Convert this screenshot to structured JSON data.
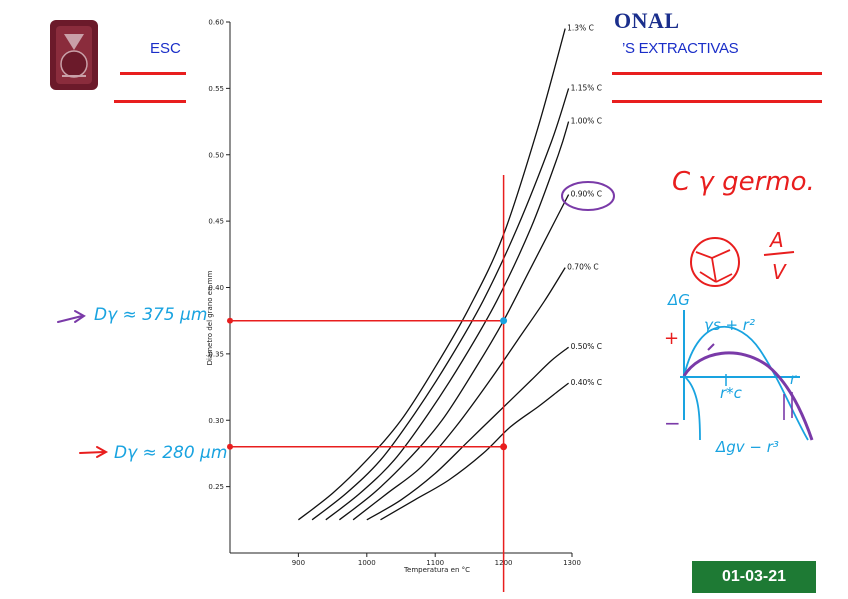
{
  "header": {
    "title_fragment": "ONAL",
    "subtitle_left_fragment": "ESC",
    "subtitle_right_fragment": "’S EXTRACTIVAS"
  },
  "date_badge": "01-03-21",
  "colors": {
    "ink_red": "#e81e1e",
    "ink_blue": "#19a3e0",
    "ink_purple": "#7a3aa8",
    "header_blue": "#1a2ec8",
    "badge_green": "#1e7a34",
    "logo_maroon": "#6b1a2a"
  },
  "chart_data": {
    "type": "line",
    "xlabel": "Temperatura en °C",
    "ylabel": "Diámetro del grano en mm",
    "xlim": [
      800,
      1300
    ],
    "ylim": [
      0.2,
      0.6
    ],
    "x_ticks": [
      900,
      1000,
      1100,
      1200,
      1300
    ],
    "x_tick_labels": [
      "900",
      "1000",
      "1100",
      "1200",
      "1300"
    ],
    "y_ticks": [
      0.25,
      0.3,
      0.35,
      0.4,
      0.45,
      0.5,
      0.55,
      0.6
    ],
    "y_tick_labels": [
      "0.25",
      "0.30",
      "0.35",
      "0.40",
      "0.45",
      "0.50",
      "0.55",
      "0.60"
    ],
    "grid": false,
    "series": [
      {
        "name": "1.3% C",
        "x": [
          900,
          950,
          1000,
          1050,
          1100,
          1150,
          1200,
          1250,
          1290
        ],
        "y": [
          0.225,
          0.245,
          0.27,
          0.3,
          0.34,
          0.385,
          0.44,
          0.52,
          0.595
        ]
      },
      {
        "name": "1.15% C",
        "x": [
          920,
          970,
          1020,
          1070,
          1120,
          1170,
          1220,
          1270,
          1295
        ],
        "y": [
          0.225,
          0.245,
          0.27,
          0.305,
          0.345,
          0.39,
          0.445,
          0.51,
          0.55
        ]
      },
      {
        "name": "1.00% C",
        "x": [
          940,
          990,
          1040,
          1090,
          1140,
          1190,
          1240,
          1280,
          1295
        ],
        "y": [
          0.225,
          0.245,
          0.27,
          0.305,
          0.345,
          0.39,
          0.445,
          0.5,
          0.525
        ]
      },
      {
        "name": "0.90% C",
        "x": [
          960,
          1010,
          1060,
          1110,
          1160,
          1200,
          1240,
          1280,
          1295
        ],
        "y": [
          0.225,
          0.245,
          0.27,
          0.3,
          0.34,
          0.375,
          0.415,
          0.455,
          0.47
        ]
      },
      {
        "name": "0.70% C",
        "x": [
          980,
          1030,
          1080,
          1130,
          1180,
          1220,
          1260,
          1290
        ],
        "y": [
          0.225,
          0.245,
          0.265,
          0.295,
          0.33,
          0.36,
          0.39,
          0.415
        ]
      },
      {
        "name": "0.50% C",
        "x": [
          1000,
          1050,
          1100,
          1150,
          1200,
          1240,
          1270,
          1295
        ],
        "y": [
          0.225,
          0.24,
          0.26,
          0.285,
          0.31,
          0.33,
          0.345,
          0.355
        ]
      },
      {
        "name": "0.40% C",
        "x": [
          1020,
          1070,
          1120,
          1170,
          1210,
          1250,
          1280,
          1295
        ],
        "y": [
          0.225,
          0.24,
          0.255,
          0.275,
          0.295,
          0.31,
          0.322,
          0.328
        ]
      }
    ],
    "annotations": {
      "vertical_line_x": 1200,
      "marked_points": [
        {
          "x": 1200,
          "y": 0.375,
          "color": "#19a3e0"
        },
        {
          "x": 1200,
          "y": 0.28,
          "color": "#e81e1e"
        }
      ],
      "readout_upper": "Dγ ≈ 375 μm",
      "readout_lower": "Dγ ≈ 280 μm"
    }
  },
  "handwriting": {
    "note_top": "C  γ germo.",
    "fraction_num": "A",
    "fraction_den": "V",
    "delta_g": "ΔG",
    "plus": "+",
    "minus": "−",
    "surface_term": "γs + r²",
    "r_star": "r*c",
    "r_axis": "r",
    "volume_term": "Δgv − r³"
  }
}
